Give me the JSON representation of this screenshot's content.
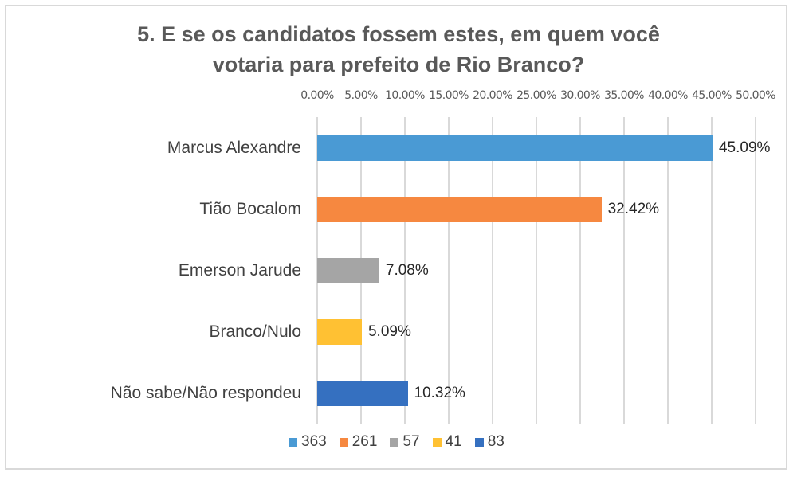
{
  "chart_data": {
    "type": "bar",
    "orientation": "horizontal",
    "title": "5. E se os candidatos fossem estes, em quem você votaria para prefeito de Rio Branco?",
    "title_lines": [
      "5. E se os candidatos fossem estes, em quem você",
      "votaria para prefeito de Rio Branco?"
    ],
    "categories": [
      "Marcus Alexandre",
      "Tião Bocalom",
      "Emerson Jarude",
      "Branco/Nulo",
      "Não sabe/Não respondeu"
    ],
    "values": [
      45.09,
      32.42,
      7.08,
      5.09,
      10.32
    ],
    "value_labels": [
      "45.09%",
      "32.42%",
      "7.08%",
      "5.09%",
      "10.32%"
    ],
    "counts": [
      363,
      261,
      57,
      41,
      83
    ],
    "colors": [
      "#4a9ad4",
      "#f68840",
      "#a5a5a5",
      "#ffc133",
      "#3570c0"
    ],
    "xlabel": "",
    "ylabel": "",
    "xlim": [
      0,
      50
    ],
    "x_axis_position": "top",
    "x_ticks": [
      "0.00%",
      "5.00%",
      "10.00%",
      "15.00%",
      "20.00%",
      "25.00%",
      "30.00%",
      "35.00%",
      "40.00%",
      "45.00%",
      "50.00%"
    ],
    "grid": true,
    "legend": {
      "position": "bottom",
      "entries": [
        "363",
        "261",
        "57",
        "41",
        "83"
      ]
    }
  }
}
